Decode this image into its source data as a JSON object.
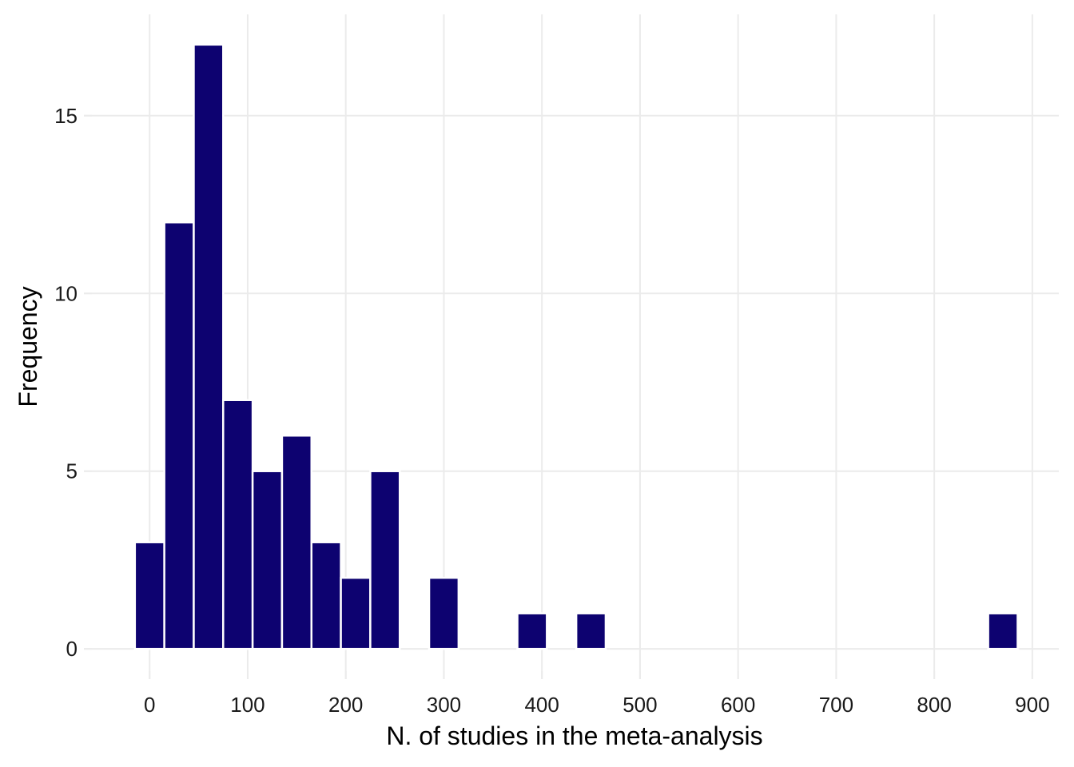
{
  "chart_data": {
    "type": "bar",
    "title": "",
    "xlabel": "N. of studies in the meta-analysis",
    "ylabel": "Frequency",
    "bin_width": 30,
    "bins": [
      {
        "center": 0,
        "count": 3
      },
      {
        "center": 30,
        "count": 12
      },
      {
        "center": 60,
        "count": 17
      },
      {
        "center": 90,
        "count": 7
      },
      {
        "center": 120,
        "count": 5
      },
      {
        "center": 150,
        "count": 6
      },
      {
        "center": 180,
        "count": 3
      },
      {
        "center": 210,
        "count": 2
      },
      {
        "center": 240,
        "count": 5
      },
      {
        "center": 270,
        "count": 0
      },
      {
        "center": 300,
        "count": 2
      },
      {
        "center": 330,
        "count": 0
      },
      {
        "center": 360,
        "count": 0
      },
      {
        "center": 390,
        "count": 1
      },
      {
        "center": 420,
        "count": 0
      },
      {
        "center": 450,
        "count": 1
      },
      {
        "center": 870,
        "count": 1
      }
    ],
    "x_ticks": [
      0,
      100,
      200,
      300,
      400,
      500,
      600,
      700,
      800,
      900
    ],
    "y_ticks": [
      0,
      5,
      10,
      15
    ],
    "xlim": [
      -67,
      927
    ],
    "ylim": [
      -0.85,
      17.85
    ],
    "grid": true,
    "bar_color": "#0d0270",
    "bar_edge_color": "#ffffff",
    "grid_color": "#ebebeb",
    "tick_color": "#ebebeb"
  }
}
